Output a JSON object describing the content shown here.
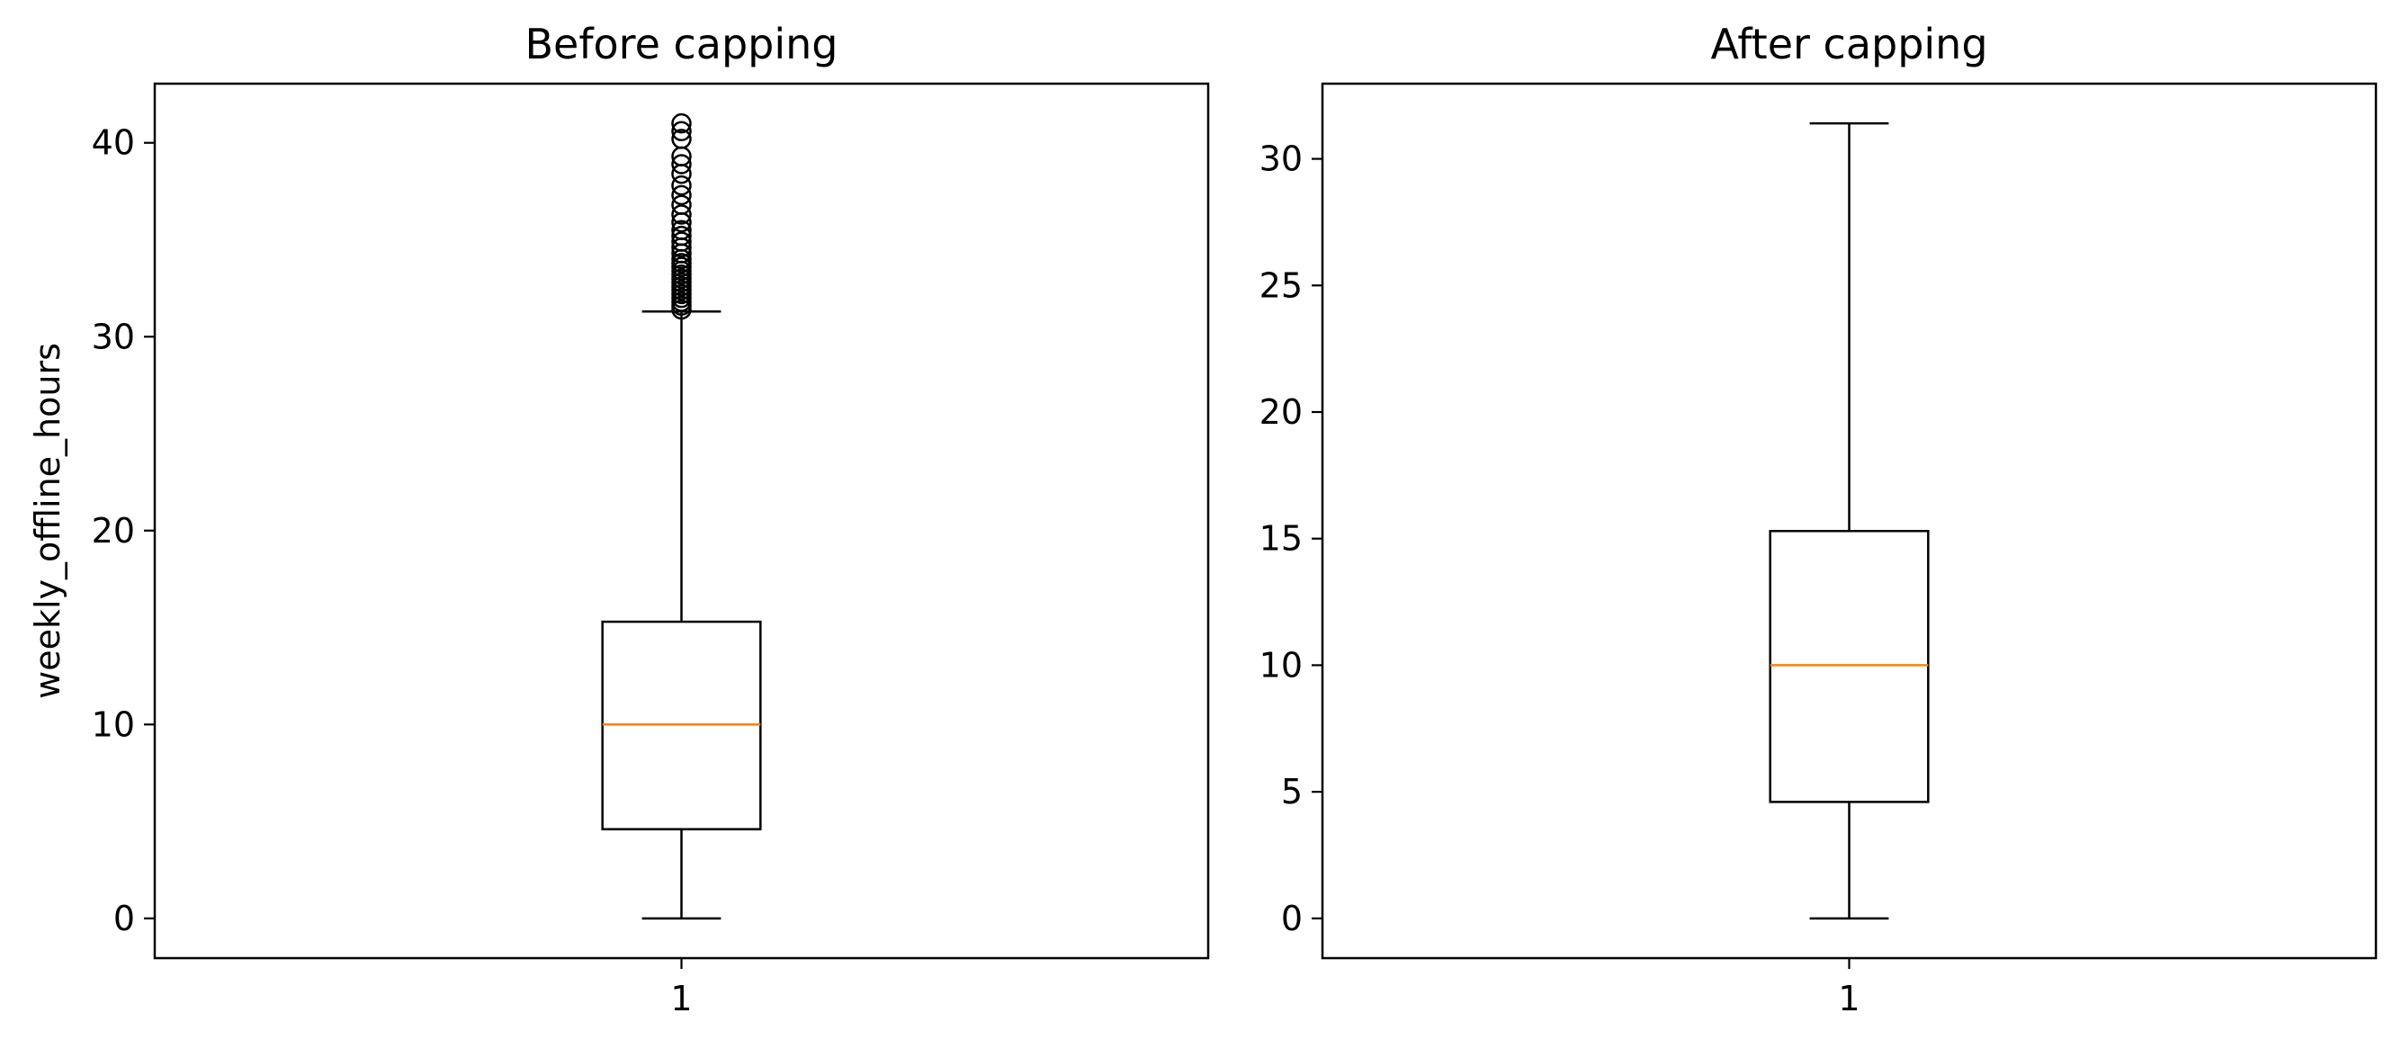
{
  "chart_data": [
    {
      "type": "box",
      "title": "Before capping",
      "xlabel": "",
      "ylabel": "weekly_offline_hours",
      "categories": [
        "1"
      ],
      "ylim": [
        -2.05,
        43.05
      ],
      "yticks": [
        0,
        10,
        20,
        30,
        40
      ],
      "grid": false,
      "box": {
        "whisker_low": 0,
        "q1": 4.6,
        "median": 10.0,
        "q3": 15.3,
        "whisker_high": 31.3
      },
      "outliers": [
        31.4,
        31.6,
        31.8,
        32.0,
        32.2,
        32.4,
        32.6,
        32.8,
        33.0,
        33.2,
        33.4,
        33.6,
        33.8,
        34.0,
        34.3,
        34.6,
        34.9,
        35.2,
        35.5,
        35.9,
        36.3,
        36.8,
        37.3,
        37.8,
        38.4,
        38.9,
        39.3,
        40.2,
        40.6,
        41.0
      ],
      "colors": {
        "box": "#000000",
        "median": "#ff7f0e"
      }
    },
    {
      "type": "box",
      "title": "After capping",
      "xlabel": "",
      "ylabel": "",
      "categories": [
        "1"
      ],
      "ylim": [
        -1.57,
        32.97
      ],
      "yticks": [
        0,
        5,
        10,
        15,
        20,
        25,
        30
      ],
      "grid": false,
      "box": {
        "whisker_low": 0,
        "q1": 4.6,
        "median": 10.0,
        "q3": 15.3,
        "whisker_high": 31.4
      },
      "outliers": [],
      "colors": {
        "box": "#000000",
        "median": "#ff7f0e"
      }
    }
  ]
}
